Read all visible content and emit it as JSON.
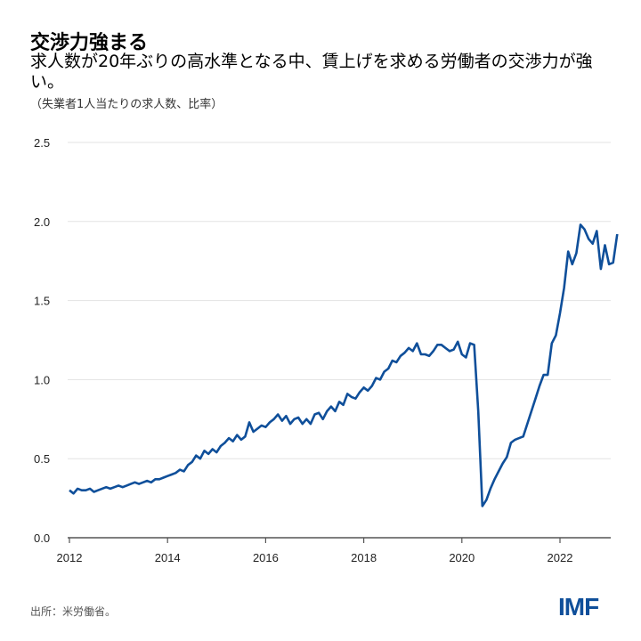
{
  "title": "交渉力強まる",
  "subtitle": "求人数が20年ぶりの高水準となる中、賃上げを求める労働者の交渉力が強い。",
  "unit_note": "（失業者1人当たりの求人数、比率）",
  "source": "出所：米労働省。",
  "logo": "IMF",
  "chart_data": {
    "type": "line",
    "title": "交渉力強まる",
    "xlabel": "",
    "ylabel": "",
    "ylim": [
      0,
      2.5
    ],
    "yticks": [
      "0.0",
      "0.5",
      "1.0",
      "1.5",
      "2.0",
      "2.5"
    ],
    "xlim": [
      2012,
      2023
    ],
    "xticks": [
      "2012",
      "2014",
      "2016",
      "2018",
      "2020",
      "2022"
    ],
    "grid": "horizontal",
    "color": "#0f4f9a",
    "start": "2012-01",
    "frequency": "monthly",
    "values": [
      0.3,
      0.28,
      0.31,
      0.3,
      0.3,
      0.31,
      0.29,
      0.3,
      0.31,
      0.32,
      0.31,
      0.32,
      0.33,
      0.32,
      0.33,
      0.34,
      0.35,
      0.34,
      0.35,
      0.36,
      0.35,
      0.37,
      0.37,
      0.38,
      0.39,
      0.4,
      0.41,
      0.43,
      0.42,
      0.46,
      0.48,
      0.52,
      0.5,
      0.55,
      0.53,
      0.56,
      0.54,
      0.58,
      0.6,
      0.63,
      0.61,
      0.65,
      0.62,
      0.64,
      0.73,
      0.67,
      0.69,
      0.71,
      0.7,
      0.73,
      0.75,
      0.78,
      0.74,
      0.77,
      0.72,
      0.75,
      0.76,
      0.72,
      0.75,
      0.72,
      0.78,
      0.79,
      0.75,
      0.8,
      0.83,
      0.8,
      0.86,
      0.84,
      0.91,
      0.89,
      0.88,
      0.92,
      0.95,
      0.93,
      0.96,
      1.01,
      1.0,
      1.05,
      1.07,
      1.12,
      1.11,
      1.15,
      1.17,
      1.2,
      1.18,
      1.23,
      1.16,
      1.16,
      1.15,
      1.18,
      1.22,
      1.22,
      1.2,
      1.18,
      1.19,
      1.24,
      1.16,
      1.14,
      1.23,
      1.22,
      0.8,
      0.2,
      0.24,
      0.31,
      0.37,
      0.42,
      0.47,
      0.51,
      0.6,
      0.62,
      0.63,
      0.64,
      0.72,
      0.8,
      0.88,
      0.96,
      1.03,
      1.03,
      1.23,
      1.28,
      1.42,
      1.58,
      1.81,
      1.73,
      1.8,
      1.98,
      1.95,
      1.89,
      1.86,
      1.94,
      1.7,
      1.85,
      1.73,
      1.74,
      1.92
    ]
  }
}
